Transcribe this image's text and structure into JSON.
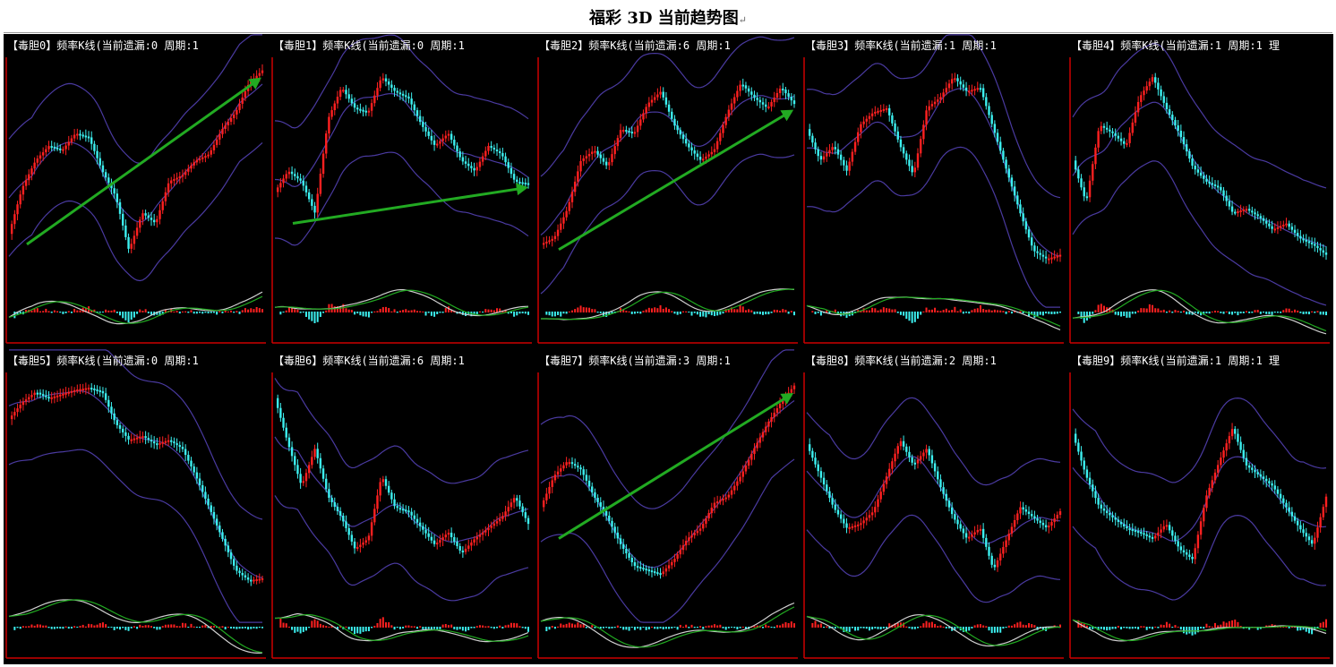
{
  "page": {
    "title": "福彩 3D 当前趋势图",
    "para_mark": "↵"
  },
  "colors": {
    "background": "#000000",
    "up_candle": "#ff2020",
    "down_candle": "#3cf0f0",
    "band": "#4a3aa0",
    "arrow": "#22aa22",
    "dif": "#d0d0d0",
    "dea": "#22aa22",
    "axis": "#cc0000",
    "title_text": "#ffffff"
  },
  "panels": [
    {
      "title": "【毒胆0】频率K线(当前遗漏:0 周期:1",
      "arrow": true
    },
    {
      "title": "【毒胆1】频率K线(当前遗漏:0 周期:1",
      "arrow": true
    },
    {
      "title": "【毒胆2】频率K线(当前遗漏:6 周期:1",
      "arrow": true
    },
    {
      "title": "【毒胆3】频率K线(当前遗漏:1 周期:1",
      "arrow": false
    },
    {
      "title": "【毒胆4】频率K线(当前遗漏:1 周期:1 理",
      "arrow": false
    },
    {
      "title": "【毒胆5】频率K线(当前遗漏:0 周期:1",
      "arrow": false
    },
    {
      "title": "【毒胆6】频率K线(当前遗漏:6 周期:1",
      "arrow": false
    },
    {
      "title": "【毒胆7】频率K线(当前遗漏:3 周期:1",
      "arrow": true
    },
    {
      "title": "【毒胆8】频率K线(当前遗漏:2 周期:1",
      "arrow": false
    },
    {
      "title": "【毒胆9】频率K线(当前遗漏:1 周期:1 理",
      "arrow": false
    }
  ],
  "chart_data": [
    {
      "type": "candlestick",
      "series": [
        {
          "values": [
            0.2,
            0.42,
            0.55,
            0.62,
            0.6,
            0.68,
            0.66,
            0.5,
            0.38,
            0.12,
            0.3,
            0.25,
            0.45,
            0.48,
            0.55,
            0.58,
            0.7,
            0.78,
            0.92,
            0.98
          ]
        }
      ]
    },
    {
      "type": "candlestick",
      "series": [
        {
          "values": [
            0.4,
            0.5,
            0.45,
            0.3,
            0.75,
            0.9,
            0.8,
            0.78,
            0.95,
            0.88,
            0.85,
            0.72,
            0.62,
            0.68,
            0.55,
            0.5,
            0.62,
            0.58,
            0.45,
            0.44
          ]
        }
      ]
    },
    {
      "type": "candlestick",
      "series": [
        {
          "values": [
            0.15,
            0.18,
            0.32,
            0.55,
            0.6,
            0.52,
            0.7,
            0.68,
            0.82,
            0.88,
            0.72,
            0.62,
            0.55,
            0.6,
            0.78,
            0.92,
            0.85,
            0.8,
            0.9,
            0.82
          ]
        }
      ]
    },
    {
      "type": "candlestick",
      "series": [
        {
          "values": [
            0.7,
            0.55,
            0.62,
            0.5,
            0.72,
            0.78,
            0.8,
            0.62,
            0.48,
            0.8,
            0.85,
            0.95,
            0.88,
            0.9,
            0.7,
            0.5,
            0.3,
            0.12,
            0.08,
            0.1
          ]
        }
      ]
    },
    {
      "type": "candlestick",
      "series": [
        {
          "values": [
            0.55,
            0.35,
            0.72,
            0.68,
            0.62,
            0.85,
            0.95,
            0.8,
            0.68,
            0.52,
            0.45,
            0.42,
            0.3,
            0.32,
            0.28,
            0.22,
            0.25,
            0.18,
            0.15,
            0.1
          ]
        }
      ]
    },
    {
      "type": "candlestick",
      "series": [
        {
          "values": [
            0.82,
            0.9,
            0.95,
            0.92,
            0.94,
            0.96,
            0.97,
            0.95,
            0.8,
            0.72,
            0.74,
            0.7,
            0.72,
            0.68,
            0.55,
            0.4,
            0.25,
            0.1,
            0.05,
            0.06
          ]
        }
      ]
    },
    {
      "type": "candlestick",
      "series": [
        {
          "values": [
            0.92,
            0.7,
            0.5,
            0.68,
            0.45,
            0.35,
            0.2,
            0.25,
            0.55,
            0.4,
            0.38,
            0.3,
            0.22,
            0.28,
            0.18,
            0.25,
            0.3,
            0.35,
            0.45,
            0.32
          ]
        }
      ]
    },
    {
      "type": "candlestick",
      "series": [
        {
          "values": [
            0.4,
            0.55,
            0.62,
            0.58,
            0.45,
            0.35,
            0.22,
            0.12,
            0.1,
            0.08,
            0.15,
            0.25,
            0.3,
            0.42,
            0.45,
            0.55,
            0.68,
            0.8,
            0.9,
            0.98
          ]
        }
      ]
    },
    {
      "type": "candlestick",
      "series": [
        {
          "values": [
            0.7,
            0.55,
            0.4,
            0.3,
            0.32,
            0.38,
            0.55,
            0.72,
            0.6,
            0.68,
            0.5,
            0.35,
            0.25,
            0.3,
            0.1,
            0.25,
            0.4,
            0.35,
            0.3,
            0.38
          ]
        }
      ]
    },
    {
      "type": "candlestick",
      "series": [
        {
          "values": [
            0.75,
            0.55,
            0.4,
            0.35,
            0.3,
            0.28,
            0.25,
            0.32,
            0.2,
            0.15,
            0.45,
            0.62,
            0.78,
            0.6,
            0.55,
            0.5,
            0.4,
            0.3,
            0.22,
            0.45
          ]
        }
      ]
    }
  ]
}
